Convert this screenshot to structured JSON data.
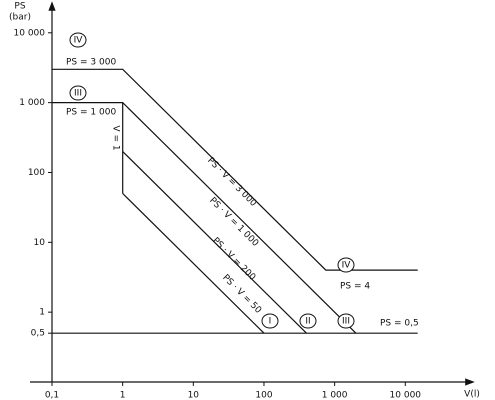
{
  "chart_data": {
    "type": "line",
    "y_label": "PS",
    "y_unit": "(bar)",
    "x_label": "V(l)",
    "log_x": true,
    "log_y": true,
    "xlim": [
      0.1,
      70000
    ],
    "ylim": [
      0.1,
      25000
    ],
    "xticks": [
      {
        "value": 0.1,
        "label": "0,1"
      },
      1,
      10,
      100,
      {
        "value": 1000,
        "label": "1 000"
      },
      {
        "value": 10000,
        "label": "10 000"
      }
    ],
    "yticks": [
      {
        "value": 0.5,
        "label": "0,5"
      },
      1,
      10,
      100,
      {
        "value": 1000,
        "label": "1 000"
      },
      {
        "value": 10000,
        "label": "10 000"
      }
    ],
    "color": "#111111",
    "lines": [
      {
        "x": [
          0.1,
          1,
          750,
          15000
        ],
        "y": [
          3000,
          3000,
          4,
          4
        ]
      },
      {
        "x": [
          0.1,
          1,
          2000
        ],
        "y": [
          1000,
          1000,
          0.5
        ]
      },
      {
        "x": [
          1,
          1
        ],
        "y": [
          1000,
          50
        ]
      },
      {
        "x": [
          1,
          400
        ],
        "y": [
          200,
          0.5
        ]
      },
      {
        "x": [
          1,
          100
        ],
        "y": [
          50,
          0.5
        ]
      },
      {
        "x": [
          0.1,
          15000
        ],
        "y": [
          0.5,
          0.5
        ]
      }
    ],
    "annotations": [
      "PS = 3 000",
      "PS = 1 000",
      "V = 1",
      "PS · V = 3 000",
      "PS · V = 1 000",
      "PS · V = 200",
      "PS · V = 50",
      "PS = 4",
      "PS = 0,5",
      "IV",
      "III",
      "IV",
      "III",
      "II",
      "I"
    ]
  }
}
